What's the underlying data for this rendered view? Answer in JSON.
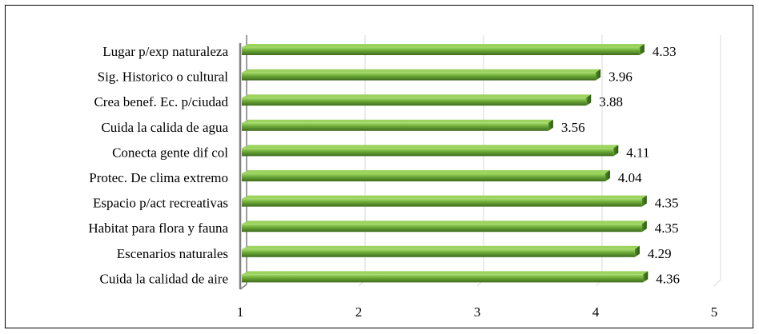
{
  "chart_data": {
    "type": "bar",
    "orientation": "horizontal",
    "categories": [
      "Lugar p/exp naturaleza",
      "Sig. Historico o cultural",
      "Crea benef. Ec. p/ciudad",
      "Cuida la calida de agua",
      "Conecta gente dif col",
      "Protec. De clima extremo",
      "Espacio p/act recreativas",
      "Habitat para flora y fauna",
      "Escenarios naturales",
      "Cuida la calidad de aire"
    ],
    "values": [
      4.33,
      3.96,
      3.88,
      3.56,
      4.11,
      4.04,
      4.35,
      4.35,
      4.29,
      4.36
    ],
    "value_labels": [
      "4.33",
      "3.96",
      "3.88",
      "3.56",
      "4.11",
      "4.04",
      "4.35",
      "4.35",
      "4.29",
      "4.36"
    ],
    "xlim": [
      1,
      5
    ],
    "xticks": [
      "1",
      "2",
      "3",
      "4",
      "5"
    ],
    "title": "",
    "xlabel": "",
    "ylabel": "",
    "grid": true,
    "bar_color": "#6aa736",
    "bar_highlight": "#8fd14f",
    "bar_shadow": "#3e6b1e"
  }
}
